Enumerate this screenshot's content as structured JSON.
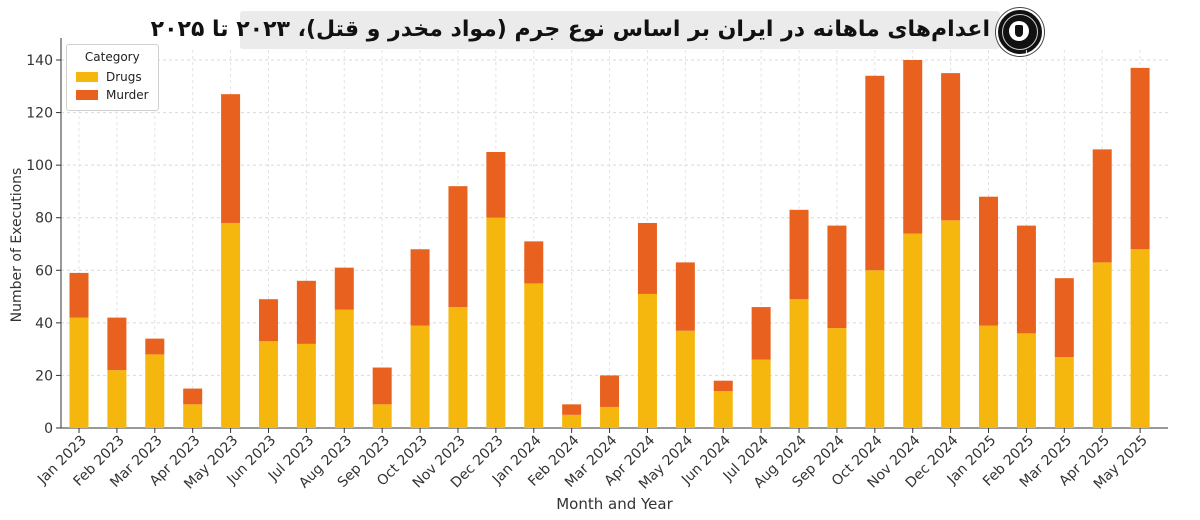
{
  "title": "اعدام‌های ماهانه در ایران بر اساس نوع جرم (مواد مخدر و قتل)، ۲۰۲۳ تا ۲۰۲۵",
  "chart_data": {
    "type": "bar",
    "stacked": true,
    "categories": [
      "Jan 2023",
      "Feb 2023",
      "Mar 2023",
      "Apr 2023",
      "May 2023",
      "Jun 2023",
      "Jul 2023",
      "Aug 2023",
      "Sep 2023",
      "Oct 2023",
      "Nov 2023",
      "Dec 2023",
      "Jan 2024",
      "Feb 2024",
      "Mar 2024",
      "Apr 2024",
      "May 2024",
      "Jun 2024",
      "Jul 2024",
      "Aug 2024",
      "Sep 2024",
      "Oct 2024",
      "Nov 2024",
      "Dec 2024",
      "Jan 2025",
      "Feb 2025",
      "Mar 2025",
      "Apr 2025",
      "May 2025"
    ],
    "series": [
      {
        "name": "Drugs",
        "color": "#F5B70E",
        "values": [
          42,
          22,
          28,
          9,
          78,
          33,
          32,
          45,
          9,
          39,
          46,
          80,
          55,
          5,
          8,
          51,
          37,
          14,
          26,
          49,
          38,
          60,
          74,
          79,
          39,
          36,
          27,
          63,
          68
        ]
      },
      {
        "name": "Murder",
        "color": "#E8611E",
        "values": [
          17,
          20,
          6,
          6,
          49,
          16,
          24,
          16,
          14,
          29,
          46,
          25,
          16,
          4,
          12,
          27,
          26,
          4,
          20,
          34,
          39,
          74,
          66,
          56,
          49,
          41,
          30,
          43,
          69
        ]
      }
    ],
    "xlabel": "Month and Year",
    "ylabel": "Number of Executions",
    "yticks": [
      0,
      20,
      40,
      60,
      80,
      100,
      120,
      140
    ],
    "ylim": [
      0,
      140
    ],
    "legend": {
      "title": "Category",
      "position": "top-left"
    },
    "grid": true
  }
}
